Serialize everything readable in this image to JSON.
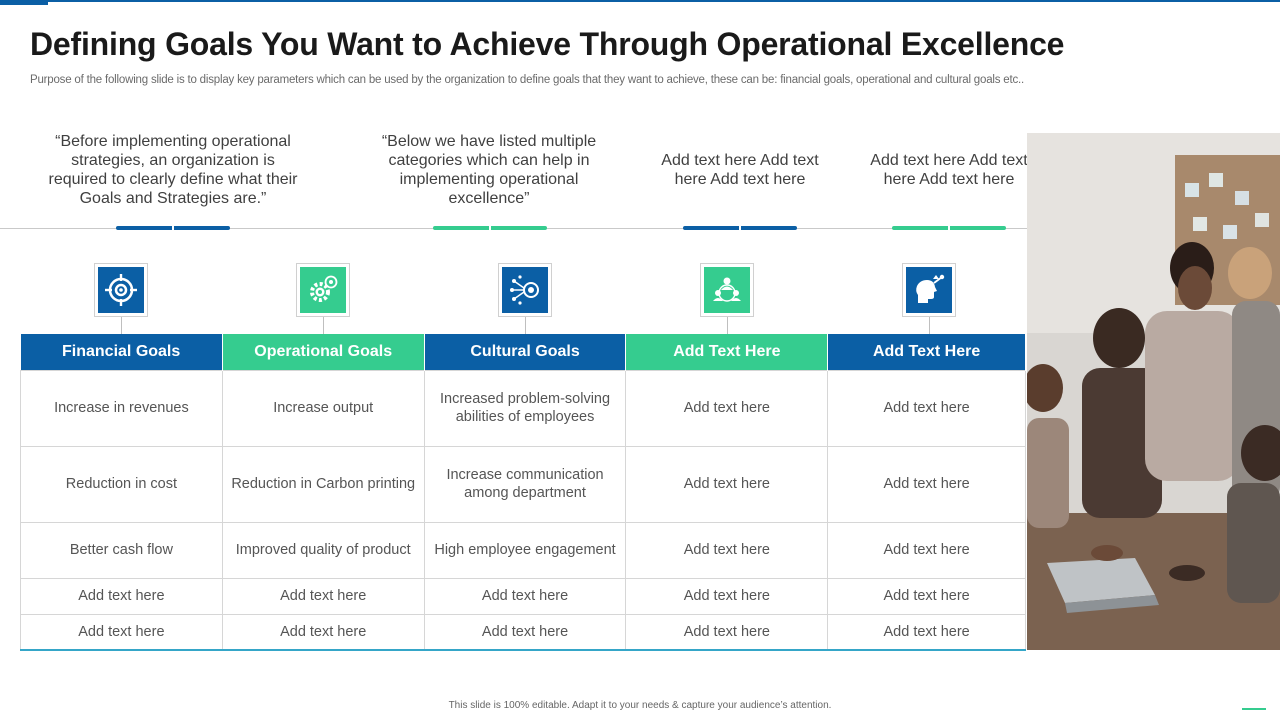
{
  "title": "Defining Goals You Want to Achieve Through Operational Excellence",
  "subtitle": "Purpose of the following slide is to display key parameters which can be used by the organization to define goals that they want to achieve, these can be: financial goals, operational and cultural goals etc..",
  "quotes": [
    "“Before implementing operational strategies, an organization is required to clearly define what their Goals and Strategies are.”",
    "“Below we have listed multiple categories which can help in implementing operational excellence”",
    "Add text here Add text here Add text here",
    "Add text here Add text here Add text here"
  ],
  "icons": [
    "target-icon",
    "gear-target-icon",
    "network-target-icon",
    "team-icon",
    "head-idea-icon"
  ],
  "colors": {
    "blue": "#0b5fa5",
    "green": "#35cc8f"
  },
  "columns": [
    {
      "header": "Financial Goals",
      "color": "blue"
    },
    {
      "header": "Operational Goals",
      "color": "green"
    },
    {
      "header": "Cultural Goals",
      "color": "blue"
    },
    {
      "header": "Add Text Here",
      "color": "green"
    },
    {
      "header": "Add Text Here",
      "color": "blue"
    }
  ],
  "rows": [
    [
      "Increase in revenues",
      "Increase output",
      "Increased problem-solving abilities of employees",
      "Add text here",
      "Add text here"
    ],
    [
      "Reduction in cost",
      "Reduction in Carbon printing",
      "Increase communication among department",
      "Add text here",
      "Add text here"
    ],
    [
      "Better cash flow",
      "Improved quality of product",
      "High employee engagement",
      "Add text here",
      "Add text here"
    ],
    [
      "Add text here",
      "Add text here",
      "Add text here",
      "Add text here",
      "Add text here"
    ],
    [
      "Add text here",
      "Add text here",
      "Add text here",
      "Add text here",
      "Add text here"
    ]
  ],
  "footer": "This slide is 100% editable. Adapt it to your needs & capture your audience’s attention."
}
